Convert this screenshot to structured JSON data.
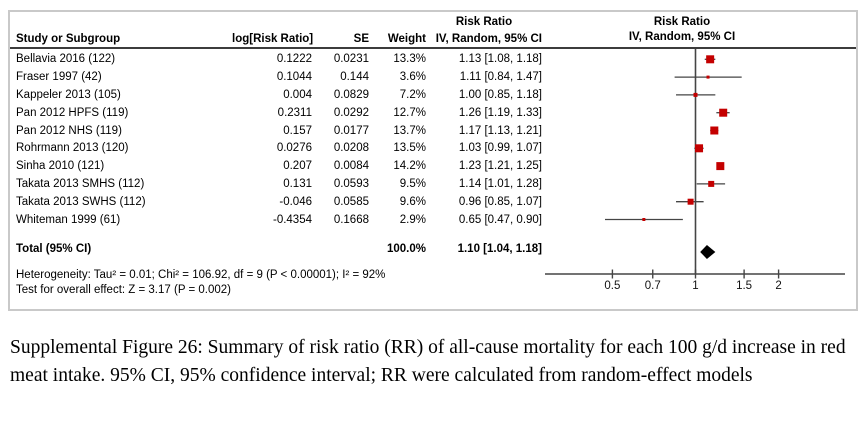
{
  "table_header": {
    "study": "Study or Subgroup",
    "log_rr": "log[Risk Ratio]",
    "se": "SE",
    "weight": "Weight",
    "ci": "IV, Random, 95% CI",
    "effect_group": "Risk Ratio"
  },
  "plot_header": {
    "line1": "Risk Ratio",
    "line2": "IV, Random, 95% CI"
  },
  "footer": {
    "heterogeneity": "Heterogeneity: Tau² = 0.01; Chi² = 106.92, df = 9 (P < 0.00001); I² = 92%",
    "overall_effect": "Test for overall effect: Z = 3.17 (P = 0.002)"
  },
  "caption": "Supplemental Figure 26: Summary of risk ratio (RR) of all-cause mortality for each 100 g/d increase in red meat intake. 95% CI, 95% confidence interval; RR were calculated from random-effect models",
  "colors": {
    "marker_red": "#c40000",
    "diamond_black": "#000000",
    "line_gray": "#454545",
    "tick_text": "#111111",
    "border_gray": "#c9c9c9"
  },
  "chart_data": {
    "type": "forest",
    "effect_measure": "Risk Ratio",
    "model": "IV, Random, 95% CI",
    "x_scale": "log",
    "x_ticks": [
      0.5,
      0.7,
      1,
      1.5,
      2
    ],
    "null_line": 1,
    "studies": [
      {
        "name": "Bellavia 2016 (122)",
        "log_rr": 0.1222,
        "se": 0.0231,
        "weight_pct": 13.3,
        "rr": 1.13,
        "ci_low": 1.08,
        "ci_high": 1.18
      },
      {
        "name": "Fraser 1997 (42)",
        "log_rr": 0.1044,
        "se": 0.144,
        "weight_pct": 3.6,
        "rr": 1.11,
        "ci_low": 0.84,
        "ci_high": 1.47
      },
      {
        "name": "Kappeler 2013 (105)",
        "log_rr": 0.004,
        "se": 0.0829,
        "weight_pct": 7.2,
        "rr": 1.0,
        "ci_low": 0.85,
        "ci_high": 1.18
      },
      {
        "name": "Pan 2012 HPFS (119)",
        "log_rr": 0.2311,
        "se": 0.0292,
        "weight_pct": 12.7,
        "rr": 1.26,
        "ci_low": 1.19,
        "ci_high": 1.33
      },
      {
        "name": "Pan 2012 NHS (119)",
        "log_rr": 0.157,
        "se": 0.0177,
        "weight_pct": 13.7,
        "rr": 1.17,
        "ci_low": 1.13,
        "ci_high": 1.21
      },
      {
        "name": "Rohrmann 2013 (120)",
        "log_rr": 0.0276,
        "se": 0.0208,
        "weight_pct": 13.5,
        "rr": 1.03,
        "ci_low": 0.99,
        "ci_high": 1.07
      },
      {
        "name": "Sinha 2010 (121)",
        "log_rr": 0.207,
        "se": 0.0084,
        "weight_pct": 14.2,
        "rr": 1.23,
        "ci_low": 1.21,
        "ci_high": 1.25
      },
      {
        "name": "Takata 2013 SMHS (112)",
        "log_rr": 0.131,
        "se": 0.0593,
        "weight_pct": 9.5,
        "rr": 1.14,
        "ci_low": 1.01,
        "ci_high": 1.28
      },
      {
        "name": "Takata 2013 SWHS (112)",
        "log_rr": -0.046,
        "se": 0.0585,
        "weight_pct": 9.6,
        "rr": 0.96,
        "ci_low": 0.85,
        "ci_high": 1.07
      },
      {
        "name": "Whiteman 1999 (61)",
        "log_rr": -0.4354,
        "se": 0.1668,
        "weight_pct": 2.9,
        "rr": 0.65,
        "ci_low": 0.47,
        "ci_high": 0.9
      }
    ],
    "total": {
      "name": "Total (95% CI)",
      "weight_pct": 100.0,
      "rr": 1.1,
      "ci_low": 1.04,
      "ci_high": 1.18
    }
  }
}
